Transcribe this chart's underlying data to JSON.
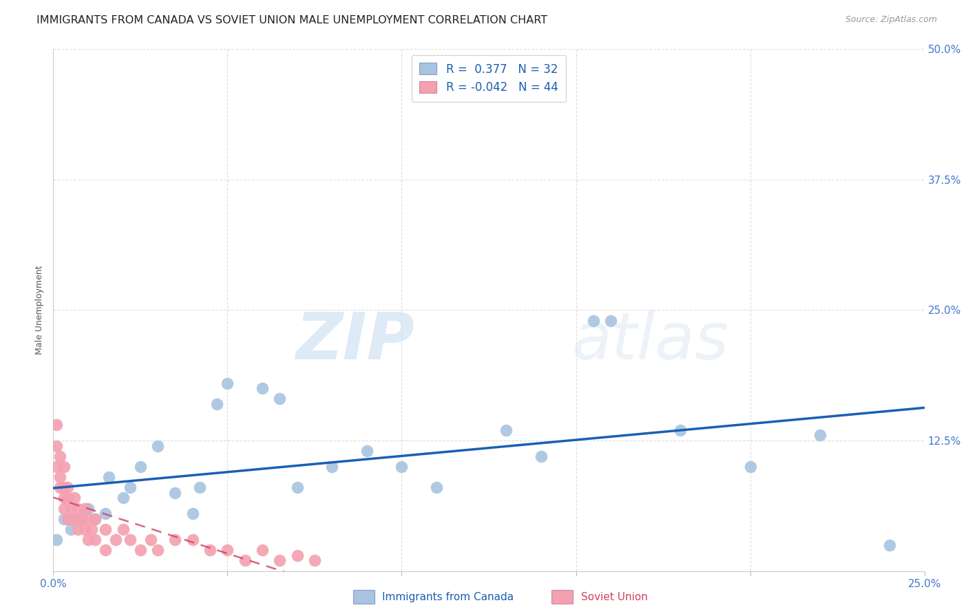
{
  "title": "IMMIGRANTS FROM CANADA VS SOVIET UNION MALE UNEMPLOYMENT CORRELATION CHART",
  "source": "Source: ZipAtlas.com",
  "ylabel": "Male Unemployment",
  "xlim": [
    0.0,
    0.25
  ],
  "ylim": [
    0.0,
    0.5
  ],
  "xticks": [
    0.0,
    0.05,
    0.1,
    0.15,
    0.2,
    0.25
  ],
  "yticks": [
    0.0,
    0.125,
    0.25,
    0.375,
    0.5
  ],
  "xticklabels": [
    "0.0%",
    "",
    "",
    "",
    "",
    "25.0%"
  ],
  "yticklabels": [
    "",
    "12.5%",
    "25.0%",
    "37.5%",
    "50.0%"
  ],
  "canada_R": 0.377,
  "canada_N": 32,
  "soviet_R": -0.042,
  "soviet_N": 44,
  "canada_color": "#a8c4e0",
  "soviet_color": "#f4a0b0",
  "canada_line_color": "#1a5fb4",
  "soviet_line_color": "#d04060",
  "legend_canada_label": "Immigrants from Canada",
  "legend_soviet_label": "Soviet Union",
  "watermark_zip": "ZIP",
  "watermark_atlas": "atlas",
  "canada_x": [
    0.001,
    0.003,
    0.005,
    0.007,
    0.01,
    0.012,
    0.015,
    0.016,
    0.02,
    0.022,
    0.025,
    0.03,
    0.035,
    0.04,
    0.042,
    0.047,
    0.05,
    0.06,
    0.065,
    0.07,
    0.08,
    0.09,
    0.1,
    0.11,
    0.13,
    0.14,
    0.155,
    0.16,
    0.18,
    0.2,
    0.22,
    0.24
  ],
  "canada_y": [
    0.03,
    0.05,
    0.04,
    0.05,
    0.06,
    0.05,
    0.055,
    0.09,
    0.07,
    0.08,
    0.1,
    0.12,
    0.075,
    0.055,
    0.08,
    0.16,
    0.18,
    0.175,
    0.165,
    0.08,
    0.1,
    0.115,
    0.1,
    0.08,
    0.135,
    0.11,
    0.24,
    0.24,
    0.135,
    0.1,
    0.13,
    0.025
  ],
  "soviet_x": [
    0.001,
    0.001,
    0.001,
    0.002,
    0.002,
    0.002,
    0.003,
    0.003,
    0.003,
    0.003,
    0.004,
    0.004,
    0.004,
    0.005,
    0.005,
    0.006,
    0.006,
    0.007,
    0.007,
    0.008,
    0.009,
    0.009,
    0.01,
    0.01,
    0.011,
    0.012,
    0.012,
    0.015,
    0.015,
    0.018,
    0.02,
    0.022,
    0.025,
    0.028,
    0.03,
    0.035,
    0.04,
    0.045,
    0.05,
    0.055,
    0.06,
    0.065,
    0.07,
    0.075
  ],
  "soviet_y": [
    0.14,
    0.12,
    0.1,
    0.11,
    0.09,
    0.08,
    0.1,
    0.08,
    0.07,
    0.06,
    0.08,
    0.07,
    0.05,
    0.06,
    0.05,
    0.07,
    0.05,
    0.06,
    0.04,
    0.05,
    0.06,
    0.04,
    0.05,
    0.03,
    0.04,
    0.05,
    0.03,
    0.04,
    0.02,
    0.03,
    0.04,
    0.03,
    0.02,
    0.03,
    0.02,
    0.03,
    0.03,
    0.02,
    0.02,
    0.01,
    0.02,
    0.01,
    0.015,
    0.01
  ],
  "background_color": "#ffffff",
  "grid_color": "#dddddd",
  "tick_color": "#4477cc",
  "title_color": "#222222",
  "title_fontsize": 11.5,
  "axis_label_fontsize": 9,
  "tick_fontsize": 11,
  "scatter_size": 160
}
